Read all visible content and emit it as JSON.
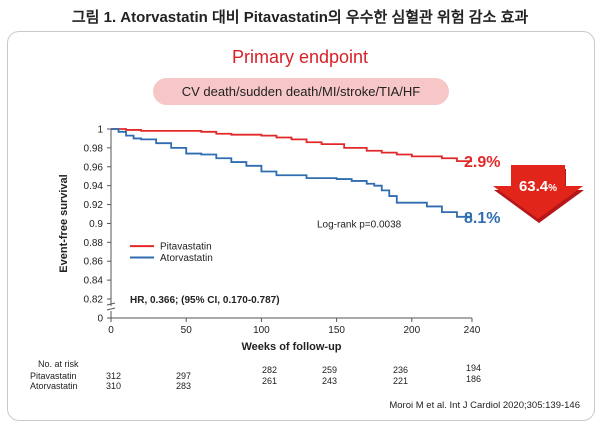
{
  "page_title": "그림 1. Atorvastatin 대비 Pitavastatin의 우수한 심혈관 위험 감소 효과",
  "subtitle": "Primary endpoint",
  "endpoint_pill": "CV death/sudden death/MI/stroke/TIA/HF",
  "citation": "Moroi M et al. Int J Cardiol 2020;305:139-146",
  "colors": {
    "pitavastatin": "#e2292a",
    "atorvastatin": "#2f6db0",
    "accent": "#d62128",
    "arrow": "#e1251b"
  },
  "chart_data": {
    "type": "line",
    "xlabel": "Weeks of follow-up",
    "ylabel": "Event-free survival",
    "x_ticks": [
      0,
      50,
      100,
      150,
      200,
      240
    ],
    "y_ticks": [
      0,
      0.82,
      0.84,
      0.86,
      0.88,
      0.9,
      0.92,
      0.94,
      0.96,
      0.98,
      1
    ],
    "y_tick_labels": [
      "0",
      "0.82",
      "0.84",
      "0.86",
      "0.88",
      "0.9",
      "0.92",
      "0.94",
      "0.96",
      "0.98",
      "1"
    ],
    "xlim": [
      0,
      240
    ],
    "ylim": [
      0.81,
      1
    ],
    "y_axis_break": true,
    "series": [
      {
        "name": "Pitavastatin",
        "color": "#e2292a",
        "x": [
          0,
          5,
          10,
          20,
          40,
          60,
          70,
          80,
          100,
          110,
          120,
          130,
          140,
          155,
          170,
          180,
          190,
          200,
          210,
          220,
          230,
          240
        ],
        "y": [
          1,
          1,
          0.999,
          0.998,
          0.998,
          0.997,
          0.995,
          0.994,
          0.993,
          0.991,
          0.989,
          0.986,
          0.984,
          0.98,
          0.977,
          0.975,
          0.973,
          0.971,
          0.971,
          0.969,
          0.966,
          0.966
        ]
      },
      {
        "name": "Atorvastatin",
        "color": "#2f6db0",
        "x": [
          0,
          5,
          10,
          15,
          20,
          30,
          40,
          50,
          60,
          70,
          80,
          90,
          100,
          110,
          120,
          130,
          150,
          160,
          170,
          175,
          180,
          185,
          190,
          200,
          210,
          220,
          230,
          240
        ],
        "y": [
          1,
          0.997,
          0.993,
          0.99,
          0.989,
          0.985,
          0.98,
          0.974,
          0.973,
          0.969,
          0.965,
          0.961,
          0.955,
          0.951,
          0.951,
          0.948,
          0.947,
          0.945,
          0.942,
          0.94,
          0.935,
          0.929,
          0.922,
          0.922,
          0.918,
          0.912,
          0.907,
          0.907
        ]
      }
    ],
    "legend": {
      "position": "bottom-left",
      "items": [
        "Pitavastatin",
        "Atorvastatin"
      ]
    },
    "annotations": {
      "pitavastatin_end": "2.9%",
      "atorvastatin_end": "8.1%",
      "logrank": "Log-rank p=0.0038",
      "hr": "HR, 0.366; (95% CI, 0.170-0.787)",
      "reduction": "63.4",
      "reduction_unit": "%"
    }
  },
  "risk_table": {
    "header": "No. at risk",
    "rows": [
      {
        "label": "Pitavastatin",
        "values": [
          "312",
          "297",
          "282",
          "259",
          "236",
          "194"
        ]
      },
      {
        "label": "Atorvastatin",
        "values": [
          "310",
          "283",
          "261",
          "243",
          "221",
          "186"
        ]
      }
    ]
  }
}
